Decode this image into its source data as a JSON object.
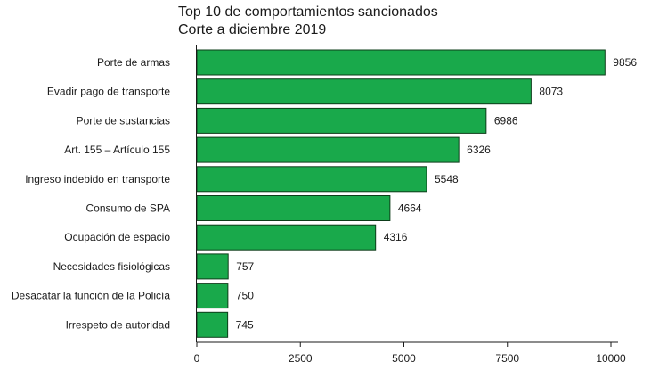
{
  "chart_data": {
    "type": "bar",
    "orientation": "horizontal",
    "title": "Top 10 de comportamientos sancionados",
    "subtitle": "Corte a diciembre 2019",
    "categories": [
      "Porte de armas",
      "Evadir pago de transporte",
      "Porte de sustancias",
      "Art. 155 – Artículo 155",
      "Ingreso indebido en transporte",
      "Consumo de SPA",
      "Ocupación de espacio",
      "Necesidades fisiológicas",
      "Desacatar la función de la Policía",
      "Irrespeto de autoridad"
    ],
    "values": [
      9856,
      8073,
      6986,
      6326,
      5548,
      4664,
      4316,
      757,
      750,
      745
    ],
    "xlim": [
      0,
      10000
    ],
    "xticks": [
      "0",
      "2500",
      "5000",
      "7500",
      "10000"
    ],
    "grid": false,
    "bar_color": "#19a94b",
    "bar_edge_color": "#0d3d1a"
  }
}
